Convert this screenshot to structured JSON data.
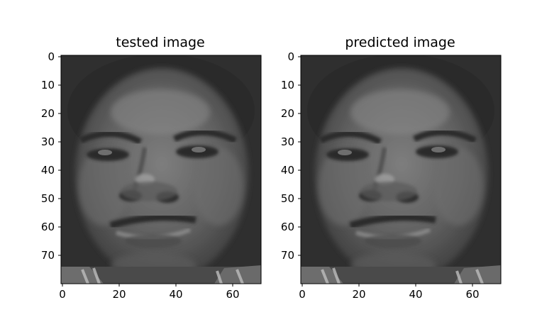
{
  "panels": [
    {
      "title": "tested image",
      "x_ticks": [
        "0",
        "20",
        "40",
        "60"
      ],
      "y_ticks": [
        "0",
        "10",
        "20",
        "30",
        "40",
        "50",
        "60",
        "70"
      ],
      "x_range": [
        0,
        70
      ],
      "y_range": [
        0,
        80
      ],
      "colormap": "grayscale"
    },
    {
      "title": "predicted image",
      "x_ticks": [
        "0",
        "20",
        "40",
        "60"
      ],
      "y_ticks": [
        "0",
        "10",
        "20",
        "30",
        "40",
        "50",
        "60",
        "70"
      ],
      "x_range": [
        0,
        70
      ],
      "y_range": [
        0,
        80
      ],
      "colormap": "grayscale"
    }
  ]
}
